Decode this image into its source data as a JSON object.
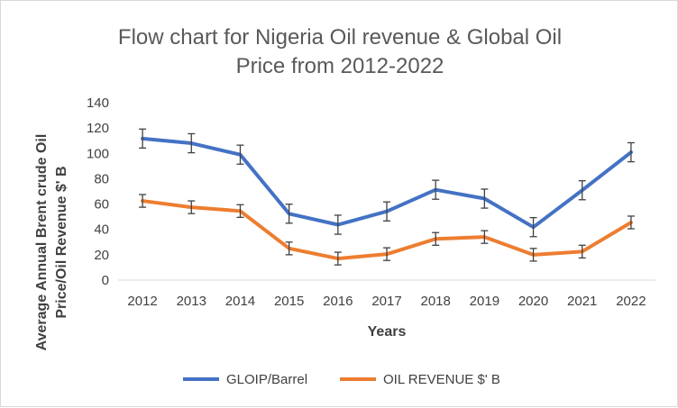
{
  "chart_data": {
    "type": "line",
    "title_lines": [
      "Flow chart for Nigeria Oil revenue & Global Oil",
      "Price from 2012-2022"
    ],
    "xlabel": "Years",
    "ylabel_lines": [
      "Average Annual Brent crude Oil",
      "Price/Oil Revenue $' B"
    ],
    "categories": [
      "2012",
      "2013",
      "2014",
      "2015",
      "2016",
      "2017",
      "2018",
      "2019",
      "2020",
      "2021",
      "2022"
    ],
    "ylim": [
      0,
      140
    ],
    "yticks": [
      0,
      20,
      40,
      60,
      80,
      100,
      120,
      140
    ],
    "series": [
      {
        "name": "GLOIP/Barrel",
        "color": "#4472c4",
        "values": [
          111.7,
          108.0,
          99.0,
          52.4,
          43.7,
          54.2,
          71.3,
          64.3,
          41.8,
          70.9,
          100.9
        ],
        "error": [
          7.5,
          7.5,
          7.5,
          7.5,
          7.5,
          7.5,
          7.5,
          7.5,
          7.5,
          7.5,
          7.5
        ]
      },
      {
        "name": "OIL REVENUE $' B",
        "color": "#ed7d31",
        "values": [
          62.5,
          57.5,
          54.5,
          25.0,
          17.0,
          20.5,
          32.5,
          34.0,
          20.0,
          22.5,
          45.5
        ],
        "error": [
          5,
          5,
          5,
          5,
          5,
          5,
          5,
          5,
          5,
          5,
          5
        ]
      }
    ],
    "legend_position": "bottom"
  }
}
